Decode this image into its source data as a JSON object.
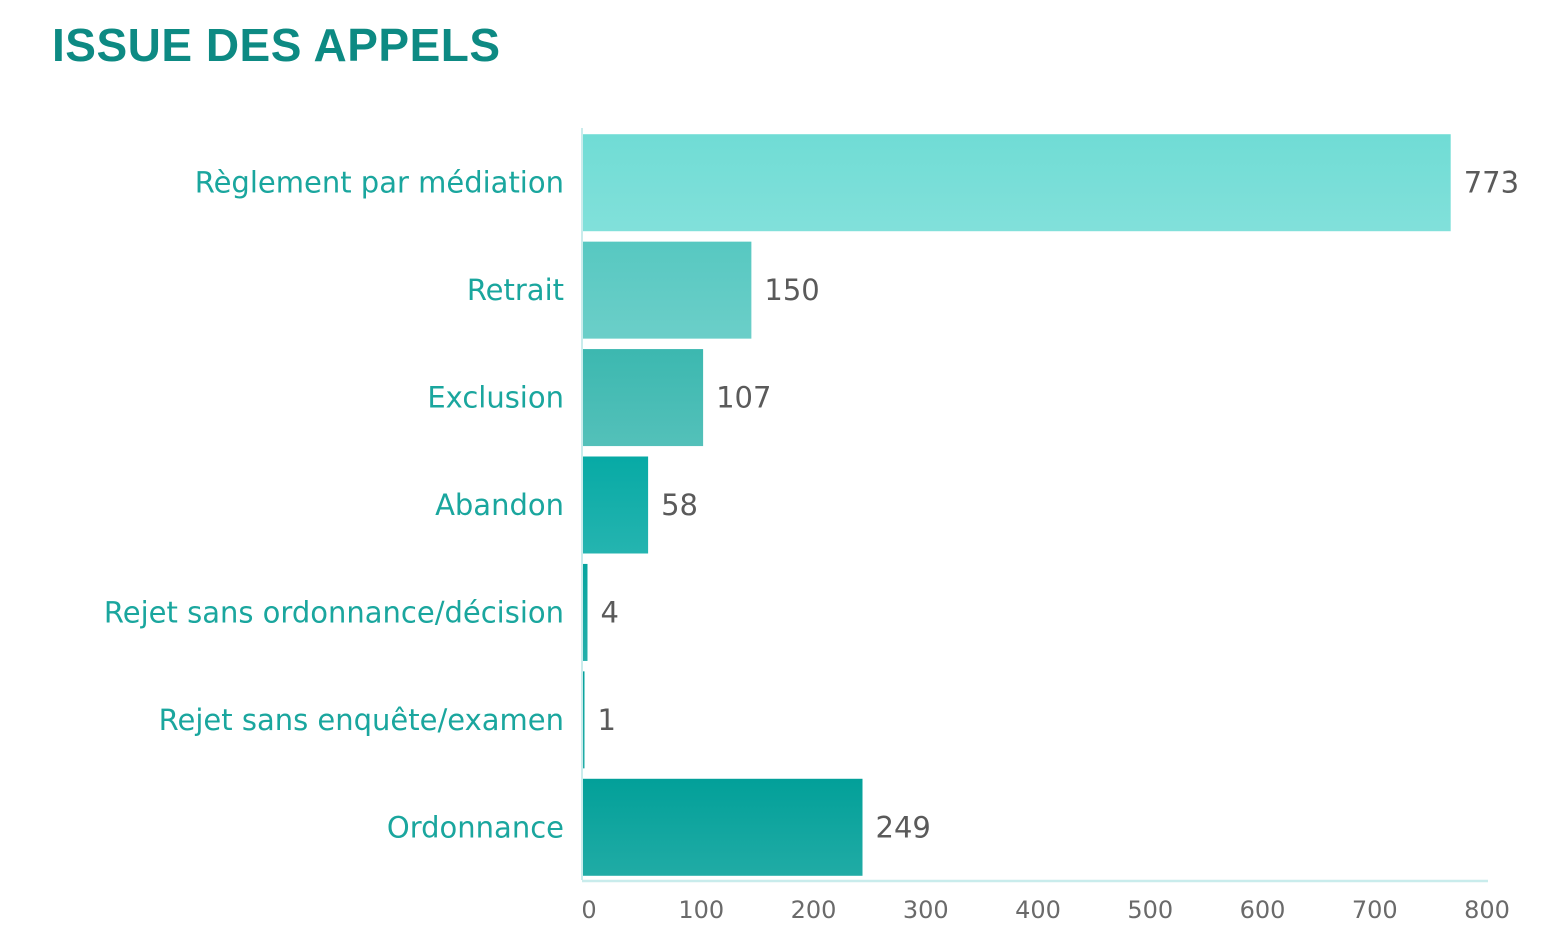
{
  "chart_data": {
    "type": "bar",
    "orientation": "horizontal",
    "title": "ISSUE DES APPELS",
    "categories": [
      "Règlement par médiation",
      "Retrait",
      "Exclusion",
      "Abandon",
      "Rejet sans ordonnance/décision",
      "Rejet sans enquête/examen",
      "Ordonnance"
    ],
    "values": [
      773,
      150,
      107,
      58,
      4,
      1,
      249
    ],
    "data_labels": [
      "773",
      "150",
      "107",
      "58",
      "4",
      "1",
      "249"
    ],
    "xlim": [
      0,
      800
    ],
    "xticks": [
      0,
      100,
      200,
      300,
      400,
      500,
      600,
      700,
      800
    ],
    "xtick_labels": [
      "0",
      "100",
      "200",
      "300",
      "400",
      "500",
      "600",
      "700",
      "800"
    ],
    "xlabel": "",
    "ylabel": "",
    "grid": false,
    "legend": "none",
    "colors": {
      "title": "#0d8a83",
      "category_labels": "#1aa69e",
      "value_labels": "#5a5a5a",
      "axis": "#c9ecec",
      "bars": [
        "#70dcd5",
        "#57c8c1",
        "#3cb8b0",
        "#07aaa5",
        "#05a49e",
        "#04a19b",
        "#02a099"
      ]
    }
  }
}
